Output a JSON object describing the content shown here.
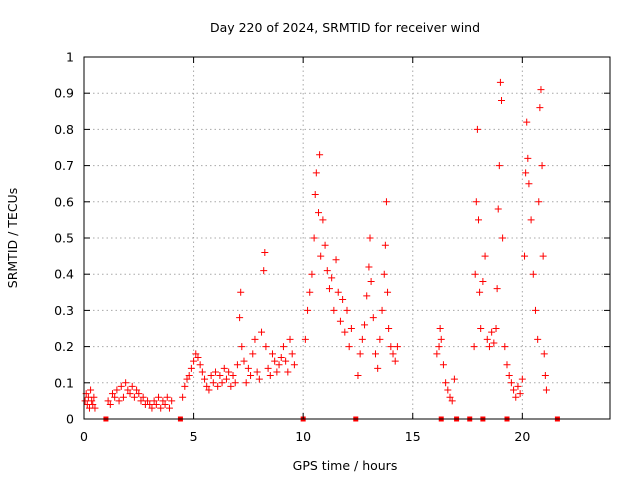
{
  "chart_data": {
    "type": "scatter",
    "title": "Day 220 of 2024, SRMTID for receiver wind",
    "xlabel": "GPS time / hours",
    "ylabel": "SRMTID / TECUs",
    "xlim": [
      0,
      24
    ],
    "ylim": [
      0,
      1
    ],
    "grid": true,
    "marker_color": "#ff0000",
    "xticks": [
      {
        "value": 0,
        "label": "0"
      },
      {
        "value": 5,
        "label": "5"
      },
      {
        "value": 10,
        "label": "10"
      },
      {
        "value": 15,
        "label": "15"
      },
      {
        "value": 20,
        "label": "20"
      }
    ],
    "yticks": [
      {
        "value": 0,
        "label": "0"
      },
      {
        "value": 0.1,
        "label": "0.1"
      },
      {
        "value": 0.2,
        "label": "0.2"
      },
      {
        "value": 0.3,
        "label": "0.3"
      },
      {
        "value": 0.4,
        "label": "0.4"
      },
      {
        "value": 0.5,
        "label": "0.5"
      },
      {
        "value": 0.6,
        "label": "0.6"
      },
      {
        "value": 0.7,
        "label": "0.7"
      },
      {
        "value": 0.8,
        "label": "0.8"
      },
      {
        "value": 0.9,
        "label": "0.9"
      },
      {
        "value": 1,
        "label": "1"
      }
    ],
    "series": [
      {
        "name": "SRMTID",
        "marker": "plus",
        "points": [
          [
            0.05,
            0.05
          ],
          [
            0.1,
            0.07
          ],
          [
            0.15,
            0.04
          ],
          [
            0.2,
            0.06
          ],
          [
            0.25,
            0.03
          ],
          [
            0.3,
            0.08
          ],
          [
            0.35,
            0.05
          ],
          [
            0.4,
            0.04
          ],
          [
            0.45,
            0.06
          ],
          [
            0.5,
            0.03
          ],
          [
            1.1,
            0.05
          ],
          [
            1.2,
            0.04
          ],
          [
            1.3,
            0.07
          ],
          [
            1.4,
            0.06
          ],
          [
            1.5,
            0.08
          ],
          [
            1.6,
            0.05
          ],
          [
            1.7,
            0.09
          ],
          [
            1.8,
            0.06
          ],
          [
            1.9,
            0.1
          ],
          [
            2.0,
            0.08
          ],
          [
            2.1,
            0.07
          ],
          [
            2.2,
            0.09
          ],
          [
            2.3,
            0.06
          ],
          [
            2.4,
            0.08
          ],
          [
            2.5,
            0.07
          ],
          [
            2.6,
            0.05
          ],
          [
            2.7,
            0.06
          ],
          [
            2.8,
            0.04
          ],
          [
            2.9,
            0.05
          ],
          [
            3.0,
            0.04
          ],
          [
            3.1,
            0.03
          ],
          [
            3.2,
            0.05
          ],
          [
            3.3,
            0.04
          ],
          [
            3.4,
            0.06
          ],
          [
            3.5,
            0.03
          ],
          [
            3.6,
            0.05
          ],
          [
            3.7,
            0.04
          ],
          [
            3.8,
            0.06
          ],
          [
            3.9,
            0.03
          ],
          [
            4.0,
            0.05
          ],
          [
            4.5,
            0.06
          ],
          [
            4.6,
            0.09
          ],
          [
            4.7,
            0.11
          ],
          [
            4.8,
            0.12
          ],
          [
            4.9,
            0.14
          ],
          [
            5.0,
            0.16
          ],
          [
            5.1,
            0.18
          ],
          [
            5.2,
            0.17
          ],
          [
            5.3,
            0.15
          ],
          [
            5.4,
            0.13
          ],
          [
            5.5,
            0.11
          ],
          [
            5.6,
            0.09
          ],
          [
            5.7,
            0.08
          ],
          [
            5.8,
            0.12
          ],
          [
            5.9,
            0.1
          ],
          [
            6.0,
            0.13
          ],
          [
            6.1,
            0.09
          ],
          [
            6.2,
            0.12
          ],
          [
            6.3,
            0.1
          ],
          [
            6.4,
            0.14
          ],
          [
            6.5,
            0.11
          ],
          [
            6.6,
            0.13
          ],
          [
            6.7,
            0.09
          ],
          [
            6.8,
            0.12
          ],
          [
            6.9,
            0.1
          ],
          [
            7.0,
            0.15
          ],
          [
            7.1,
            0.28
          ],
          [
            7.15,
            0.35
          ],
          [
            7.2,
            0.2
          ],
          [
            7.3,
            0.16
          ],
          [
            7.4,
            0.1
          ],
          [
            7.5,
            0.14
          ],
          [
            7.6,
            0.12
          ],
          [
            7.7,
            0.18
          ],
          [
            7.8,
            0.22
          ],
          [
            7.9,
            0.13
          ],
          [
            8.0,
            0.11
          ],
          [
            8.1,
            0.24
          ],
          [
            8.2,
            0.41
          ],
          [
            8.25,
            0.46
          ],
          [
            8.3,
            0.2
          ],
          [
            8.4,
            0.14
          ],
          [
            8.5,
            0.12
          ],
          [
            8.6,
            0.18
          ],
          [
            8.7,
            0.16
          ],
          [
            8.8,
            0.13
          ],
          [
            8.9,
            0.15
          ],
          [
            9.0,
            0.17
          ],
          [
            9.1,
            0.2
          ],
          [
            9.2,
            0.16
          ],
          [
            9.3,
            0.13
          ],
          [
            9.4,
            0.22
          ],
          [
            9.5,
            0.18
          ],
          [
            9.6,
            0.15
          ],
          [
            10.1,
            0.22
          ],
          [
            10.2,
            0.3
          ],
          [
            10.3,
            0.35
          ],
          [
            10.4,
            0.4
          ],
          [
            10.5,
            0.5
          ],
          [
            10.55,
            0.62
          ],
          [
            10.6,
            0.68
          ],
          [
            10.7,
            0.57
          ],
          [
            10.75,
            0.73
          ],
          [
            10.8,
            0.45
          ],
          [
            10.9,
            0.55
          ],
          [
            11.0,
            0.48
          ],
          [
            11.1,
            0.41
          ],
          [
            11.2,
            0.36
          ],
          [
            11.3,
            0.39
          ],
          [
            11.4,
            0.3
          ],
          [
            11.5,
            0.44
          ],
          [
            11.6,
            0.35
          ],
          [
            11.7,
            0.27
          ],
          [
            11.8,
            0.33
          ],
          [
            11.9,
            0.24
          ],
          [
            12.0,
            0.3
          ],
          [
            12.1,
            0.2
          ],
          [
            12.2,
            0.25
          ],
          [
            12.5,
            0.12
          ],
          [
            12.6,
            0.18
          ],
          [
            12.7,
            0.22
          ],
          [
            12.8,
            0.26
          ],
          [
            12.9,
            0.34
          ],
          [
            13.0,
            0.42
          ],
          [
            13.05,
            0.5
          ],
          [
            13.1,
            0.38
          ],
          [
            13.2,
            0.28
          ],
          [
            13.3,
            0.18
          ],
          [
            13.4,
            0.14
          ],
          [
            13.5,
            0.22
          ],
          [
            13.6,
            0.3
          ],
          [
            13.7,
            0.4
          ],
          [
            13.75,
            0.48
          ],
          [
            13.8,
            0.6
          ],
          [
            13.85,
            0.35
          ],
          [
            13.9,
            0.25
          ],
          [
            14.0,
            0.2
          ],
          [
            14.1,
            0.18
          ],
          [
            14.2,
            0.16
          ],
          [
            14.3,
            0.2
          ],
          [
            16.1,
            0.18
          ],
          [
            16.2,
            0.2
          ],
          [
            16.25,
            0.25
          ],
          [
            16.3,
            0.22
          ],
          [
            16.4,
            0.15
          ],
          [
            16.5,
            0.1
          ],
          [
            16.6,
            0.08
          ],
          [
            16.7,
            0.06
          ],
          [
            16.8,
            0.05
          ],
          [
            16.9,
            0.11
          ],
          [
            17.8,
            0.2
          ],
          [
            17.85,
            0.4
          ],
          [
            17.9,
            0.6
          ],
          [
            17.95,
            0.8
          ],
          [
            18.0,
            0.55
          ],
          [
            18.05,
            0.35
          ],
          [
            18.1,
            0.25
          ],
          [
            18.2,
            0.38
          ],
          [
            18.3,
            0.45
          ],
          [
            18.4,
            0.22
          ],
          [
            18.5,
            0.2
          ],
          [
            18.6,
            0.24
          ],
          [
            18.7,
            0.21
          ],
          [
            18.8,
            0.25
          ],
          [
            18.85,
            0.36
          ],
          [
            18.9,
            0.58
          ],
          [
            18.95,
            0.7
          ],
          [
            19.0,
            0.93
          ],
          [
            19.05,
            0.88
          ],
          [
            19.1,
            0.5
          ],
          [
            19.2,
            0.2
          ],
          [
            19.3,
            0.15
          ],
          [
            19.4,
            0.12
          ],
          [
            19.5,
            0.1
          ],
          [
            19.6,
            0.08
          ],
          [
            19.7,
            0.06
          ],
          [
            19.8,
            0.09
          ],
          [
            19.9,
            0.07
          ],
          [
            20.0,
            0.11
          ],
          [
            20.1,
            0.45
          ],
          [
            20.15,
            0.68
          ],
          [
            20.2,
            0.82
          ],
          [
            20.25,
            0.72
          ],
          [
            20.3,
            0.65
          ],
          [
            20.4,
            0.55
          ],
          [
            20.5,
            0.4
          ],
          [
            20.6,
            0.3
          ],
          [
            20.7,
            0.22
          ],
          [
            20.75,
            0.6
          ],
          [
            20.8,
            0.86
          ],
          [
            20.85,
            0.91
          ],
          [
            20.9,
            0.7
          ],
          [
            20.95,
            0.45
          ],
          [
            21.0,
            0.18
          ],
          [
            21.05,
            0.12
          ],
          [
            21.1,
            0.08
          ]
        ]
      },
      {
        "name": "markers at zero",
        "marker": "square",
        "points": [
          [
            1.0,
            0
          ],
          [
            4.4,
            0
          ],
          [
            10.0,
            0
          ],
          [
            12.4,
            0
          ],
          [
            16.3,
            0
          ],
          [
            17.0,
            0
          ],
          [
            17.6,
            0
          ],
          [
            18.2,
            0
          ],
          [
            19.3,
            0
          ],
          [
            21.6,
            0
          ]
        ]
      }
    ]
  }
}
